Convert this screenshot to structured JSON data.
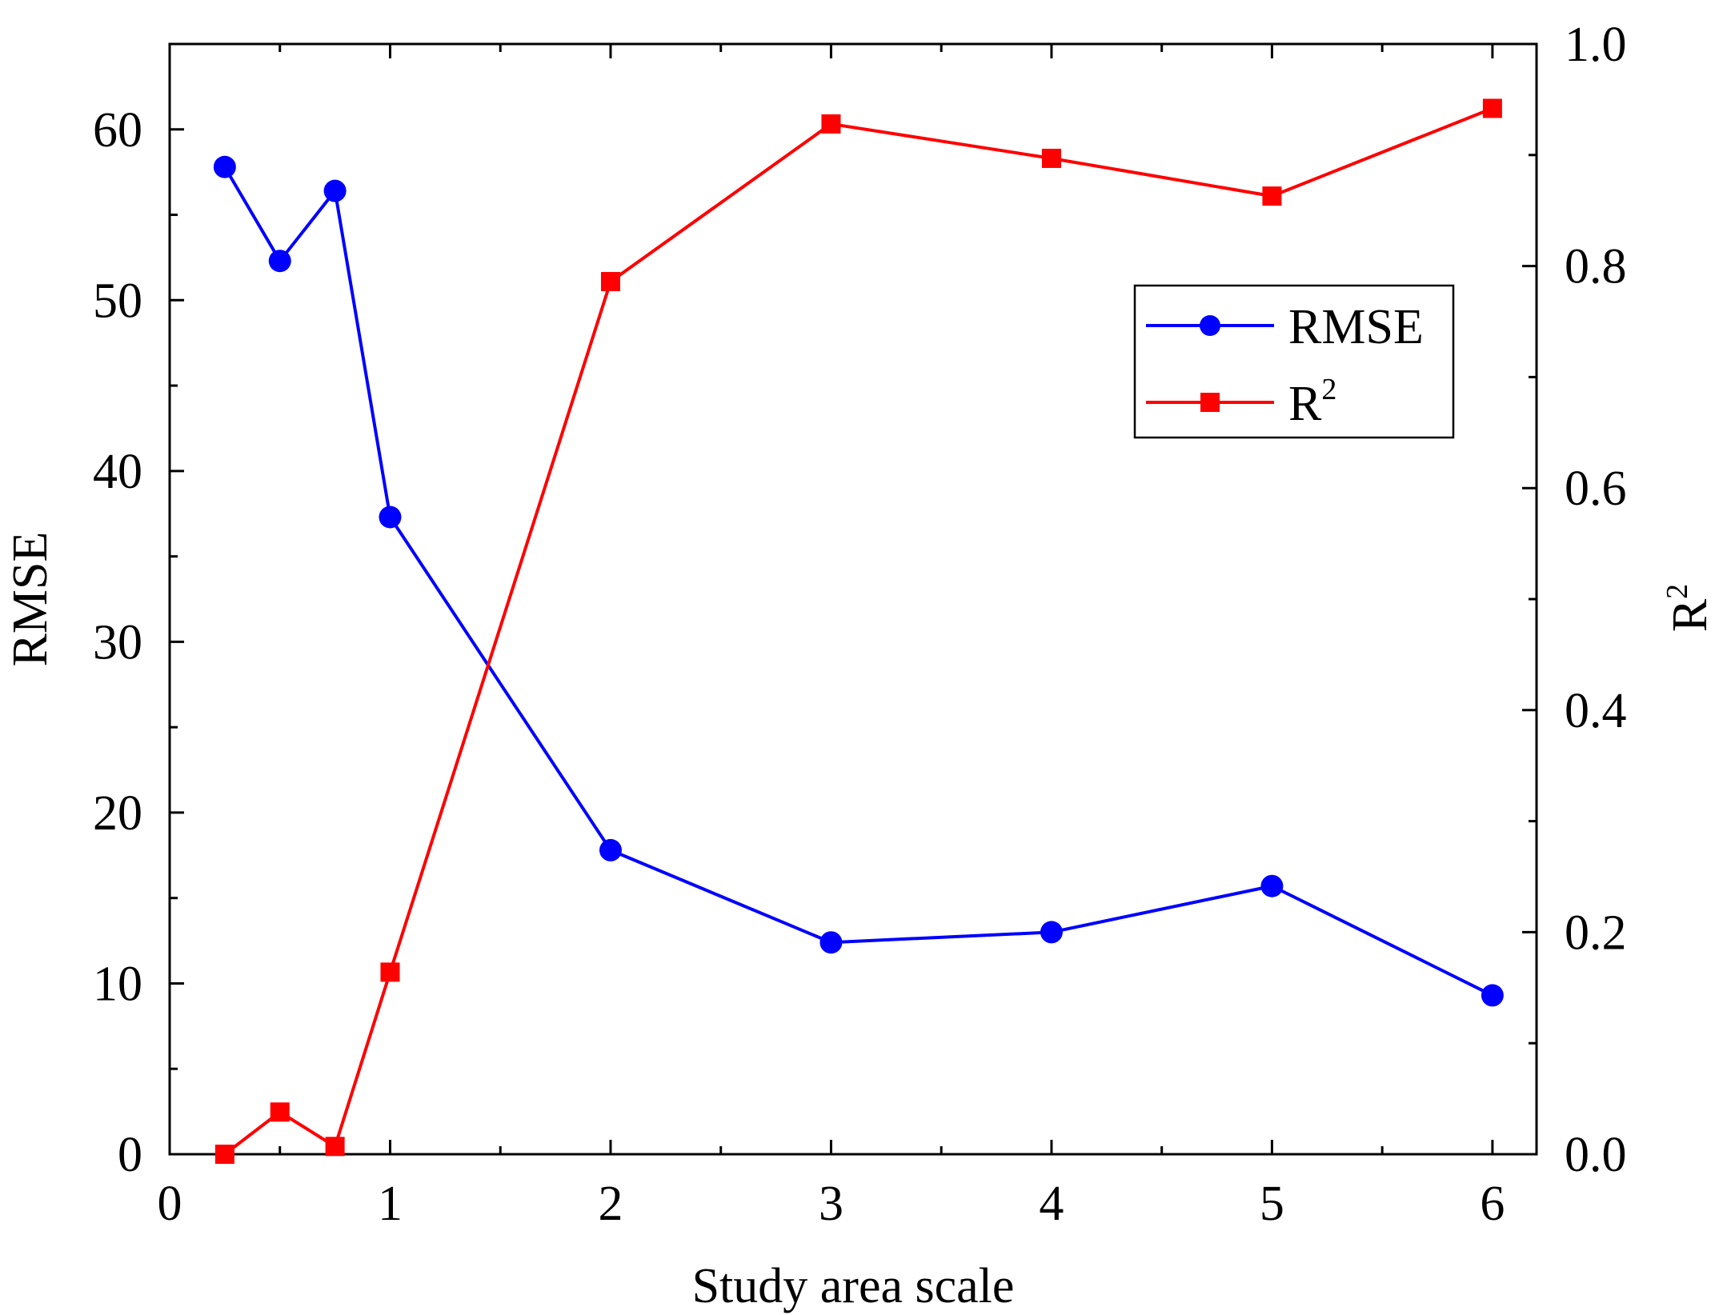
{
  "chart_data": {
    "type": "line",
    "xlabel": "Study area scale",
    "ylabel_left": "RMSE",
    "ylabel_right": {
      "base": "R",
      "superscript": "2"
    },
    "xlim": [
      0,
      6.2
    ],
    "ylim_left": [
      0,
      65
    ],
    "ylim_right": [
      0,
      1.0
    ],
    "x_ticks": [
      0,
      1,
      2,
      3,
      4,
      5,
      6
    ],
    "x_tick_labels": [
      "0",
      "1",
      "2",
      "3",
      "4",
      "5",
      "6"
    ],
    "y_left_ticks": [
      0,
      10,
      20,
      30,
      40,
      50,
      60
    ],
    "y_left_tick_labels": [
      "0",
      "10",
      "20",
      "30",
      "40",
      "50",
      "60"
    ],
    "y_right_ticks": [
      0.0,
      0.2,
      0.4,
      0.6,
      0.8,
      1.0
    ],
    "y_right_tick_labels": [
      "0.0",
      "0.2",
      "0.4",
      "0.6",
      "0.8",
      "1.0"
    ],
    "legend_position": "upper-right",
    "series": [
      {
        "name": "RMSE",
        "axis": "left",
        "marker": "circle",
        "color": "#0000ff",
        "x": [
          0.25,
          0.5,
          0.75,
          1,
          2,
          3,
          4,
          5,
          6
        ],
        "values": [
          57.8,
          52.3,
          56.4,
          37.3,
          17.8,
          12.4,
          13.0,
          15.7,
          9.3
        ]
      },
      {
        "name": "R2",
        "label_base": "R",
        "label_superscript": "2",
        "axis": "right",
        "marker": "square",
        "color": "#ff0000",
        "x": [
          0.25,
          0.5,
          0.75,
          1,
          2,
          3,
          4,
          5,
          6
        ],
        "values": [
          0.0,
          0.038,
          0.007,
          0.164,
          0.786,
          0.928,
          0.897,
          0.863,
          0.942
        ]
      }
    ]
  }
}
